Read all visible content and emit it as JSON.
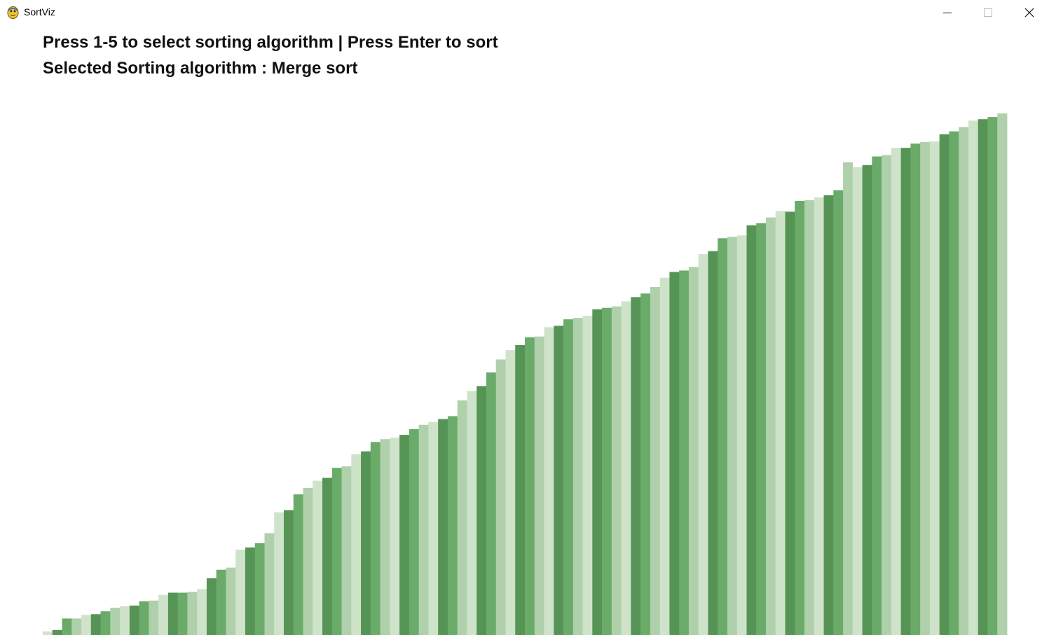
{
  "window": {
    "title": "SortViz",
    "app_icon": "python-snake-icon",
    "controls": [
      "minimize-icon",
      "maximize-icon",
      "close-icon"
    ]
  },
  "header": {
    "instructions": "Press 1-5 to select sorting algorithm | Press Enter to sort",
    "selected_algorithm": "Selected Sorting algorithm : Merge sort"
  },
  "chart_data": {
    "type": "bar",
    "title": "",
    "xlabel": "",
    "ylabel": "",
    "grid": false,
    "ylim": [
      0,
      750
    ],
    "colors": [
      "#cfe3ca",
      "#569456",
      "#6aab6a",
      "#afd0ab"
    ],
    "values": [
      5,
      7,
      23,
      23,
      28,
      29,
      33,
      38,
      40,
      41,
      47,
      48,
      56,
      59,
      59,
      60,
      64,
      79,
      91,
      94,
      119,
      122,
      128,
      142,
      171,
      174,
      196,
      205,
      215,
      219,
      233,
      235,
      252,
      256,
      269,
      273,
      275,
      279,
      287,
      293,
      297,
      301,
      305,
      327,
      340,
      347,
      366,
      384,
      397,
      404,
      415,
      416,
      429,
      431,
      440,
      442,
      445,
      454,
      456,
      458,
      465,
      471,
      476,
      485,
      498,
      506,
      508,
      513,
      531,
      535,
      553,
      555,
      557,
      571,
      574,
      582,
      591,
      590,
      605,
      606,
      610,
      613,
      620,
      659,
      652,
      655,
      667,
      669,
      679,
      679,
      685,
      687,
      688,
      698,
      702,
      708,
      717,
      719,
      722,
      727
    ]
  }
}
